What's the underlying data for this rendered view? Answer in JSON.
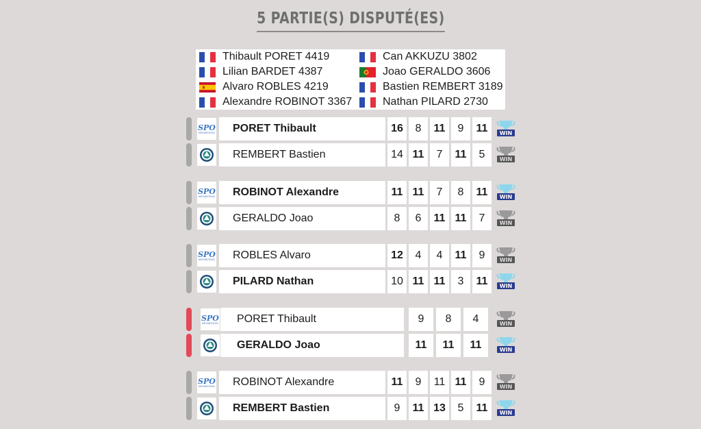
{
  "header": {
    "title": "5 PARTIE(S) DISPUTÉ(ES)"
  },
  "roster": [
    {
      "flag": "france",
      "label": "Thibault PORET 4419"
    },
    {
      "flag": "france",
      "label": "Can AKKUZU 3802"
    },
    {
      "flag": "france",
      "label": "Lilian BARDET 4387"
    },
    {
      "flag": "portugal",
      "label": "Joao GERALDO 3606"
    },
    {
      "flag": "spain",
      "label": "Alvaro ROBLES 4219"
    },
    {
      "flag": "france",
      "label": "Bastien REMBERT 3189"
    },
    {
      "flag": "france",
      "label": "Alexandre ROBINOT 3367"
    },
    {
      "flag": "france",
      "label": "Nathan PILARD 2730"
    }
  ],
  "team_logos": {
    "top": "SPO",
    "bottom": "club-crest-icon"
  },
  "win_badge_label": "WIN",
  "colors": {
    "background": "#dcd9d8",
    "live_marker": "#e14a57",
    "idle_marker": "#a8a8a8",
    "win_active": "#7fd0e8",
    "win_inactive": "#777777",
    "spo_blue": "#3a78c4"
  },
  "matches": [
    {
      "live": false,
      "players": [
        {
          "name": "PORET Thibault",
          "winner": true,
          "scores": [
            "16",
            "8",
            "11",
            "9",
            "11"
          ],
          "bold": [
            true,
            false,
            true,
            false,
            true
          ]
        },
        {
          "name": "REMBERT Bastien",
          "winner": false,
          "scores": [
            "14",
            "11",
            "7",
            "11",
            "5"
          ],
          "bold": [
            false,
            true,
            false,
            true,
            false
          ]
        }
      ]
    },
    {
      "live": false,
      "players": [
        {
          "name": "ROBINOT Alexandre",
          "winner": true,
          "scores": [
            "11",
            "11",
            "7",
            "8",
            "11"
          ],
          "bold": [
            true,
            true,
            false,
            false,
            true
          ]
        },
        {
          "name": "GERALDO Joao",
          "winner": false,
          "scores": [
            "8",
            "6",
            "11",
            "11",
            "7"
          ],
          "bold": [
            false,
            false,
            true,
            true,
            false
          ]
        }
      ]
    },
    {
      "live": false,
      "players": [
        {
          "name": "ROBLES Alvaro",
          "winner": false,
          "scores": [
            "12",
            "4",
            "4",
            "11",
            "9"
          ],
          "bold": [
            true,
            false,
            false,
            true,
            false
          ]
        },
        {
          "name": "PILARD Nathan",
          "winner": true,
          "scores": [
            "10",
            "11",
            "11",
            "3",
            "11"
          ],
          "bold": [
            false,
            true,
            true,
            false,
            true
          ]
        }
      ]
    },
    {
      "live": true,
      "players": [
        {
          "name": "PORET Thibault",
          "winner": false,
          "scores": [
            "9",
            "8",
            "4"
          ],
          "bold": [
            false,
            false,
            false
          ]
        },
        {
          "name": "GERALDO Joao",
          "winner": true,
          "scores": [
            "11",
            "11",
            "11"
          ],
          "bold": [
            true,
            true,
            true
          ]
        }
      ]
    },
    {
      "live": false,
      "players": [
        {
          "name": "ROBINOT Alexandre",
          "winner": false,
          "scores": [
            "11",
            "9",
            "11",
            "11",
            "9"
          ],
          "bold": [
            true,
            false,
            false,
            true,
            false
          ]
        },
        {
          "name": "REMBERT Bastien",
          "winner": true,
          "scores": [
            "9",
            "11",
            "13",
            "5",
            "11"
          ],
          "bold": [
            false,
            true,
            true,
            false,
            true
          ]
        }
      ]
    }
  ]
}
